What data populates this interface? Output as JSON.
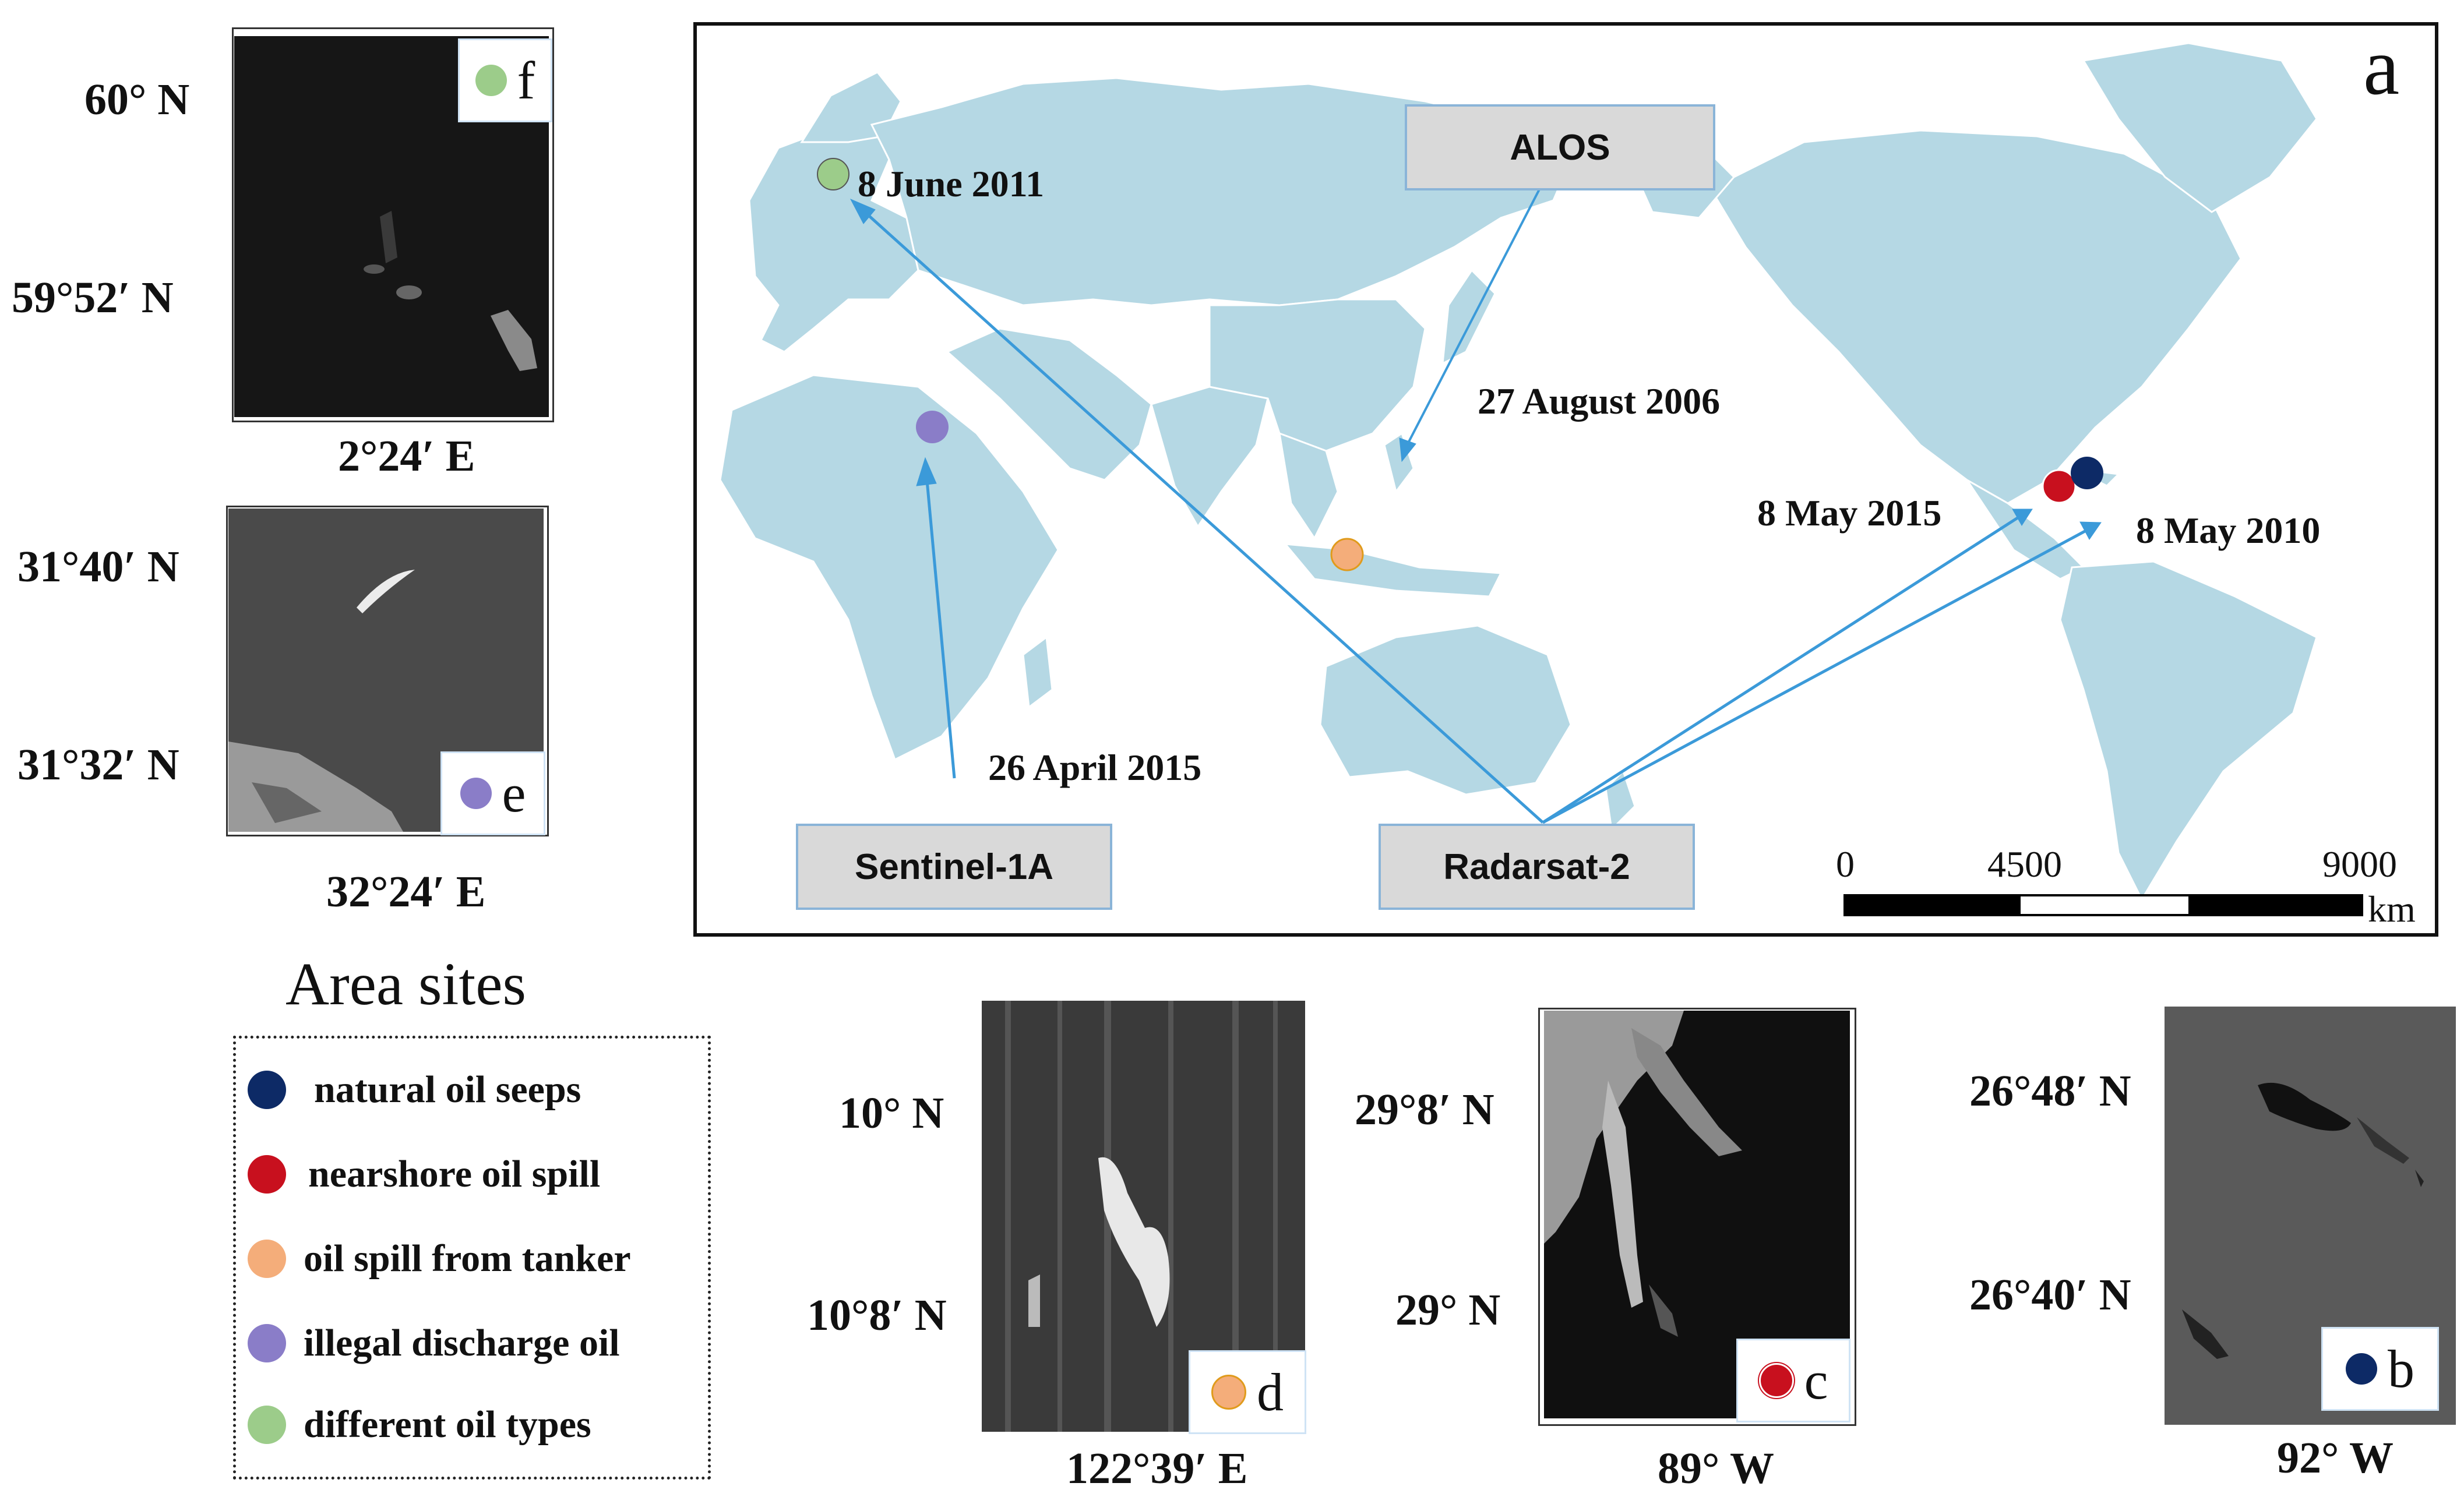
{
  "colors": {
    "land": "#b5d8e4",
    "arrow": "#3b9ad9",
    "natural_oil_seeps": "#0d2a66",
    "nearshore_oil_spill": "#c8101e",
    "oil_spill_from_tanker": "#f4ad7a",
    "illegal_discharge_oil": "#8a7dc8",
    "different_oil_types": "#9ccc8a"
  },
  "map": {
    "panel_letter": "a",
    "satellites": {
      "alos": "ALOS",
      "sentinel": "Sentinel-1A",
      "radarsat": "Radarsat-2"
    },
    "dates": {
      "june_2011": "8 June 2011",
      "august_2006": "27 August 2006",
      "april_2015": "26 April 2015",
      "may_2015": "8 May 2015",
      "may_2010": "8 May 2010"
    },
    "scale": {
      "t0": "0",
      "t1": "4500",
      "t2": "9000",
      "unit": "km"
    }
  },
  "panels": {
    "f": {
      "letter": "f",
      "lat1": "60° N",
      "lat2": "59°52′ N",
      "lon": "2°24′ E"
    },
    "e": {
      "letter": "e",
      "lat1": "31°40′ N",
      "lat2": "31°32′ N",
      "lon": "32°24′ E"
    },
    "d": {
      "letter": "d",
      "lat1": "10° N",
      "lat2": "10°8′ N",
      "lon": "122°39′ E"
    },
    "c": {
      "letter": "c",
      "lat1": "29°8′ N",
      "lat2": "29° N",
      "lon": "89° W"
    },
    "b": {
      "letter": "b",
      "lat1": "26°48′ N",
      "lat2": "26°40′ N",
      "lon": "92° W"
    }
  },
  "legend": {
    "title": "Area sites",
    "items": [
      {
        "label": "natural oil seeps",
        "color_key": "natural_oil_seeps"
      },
      {
        "label": "nearshore oil spill",
        "color_key": "nearshore_oil_spill"
      },
      {
        "label": "oil spill from tanker",
        "color_key": "oil_spill_from_tanker"
      },
      {
        "label": "illegal discharge oil",
        "color_key": "illegal_discharge_oil"
      },
      {
        "label": "different oil types",
        "color_key": "different_oil_types"
      }
    ]
  }
}
